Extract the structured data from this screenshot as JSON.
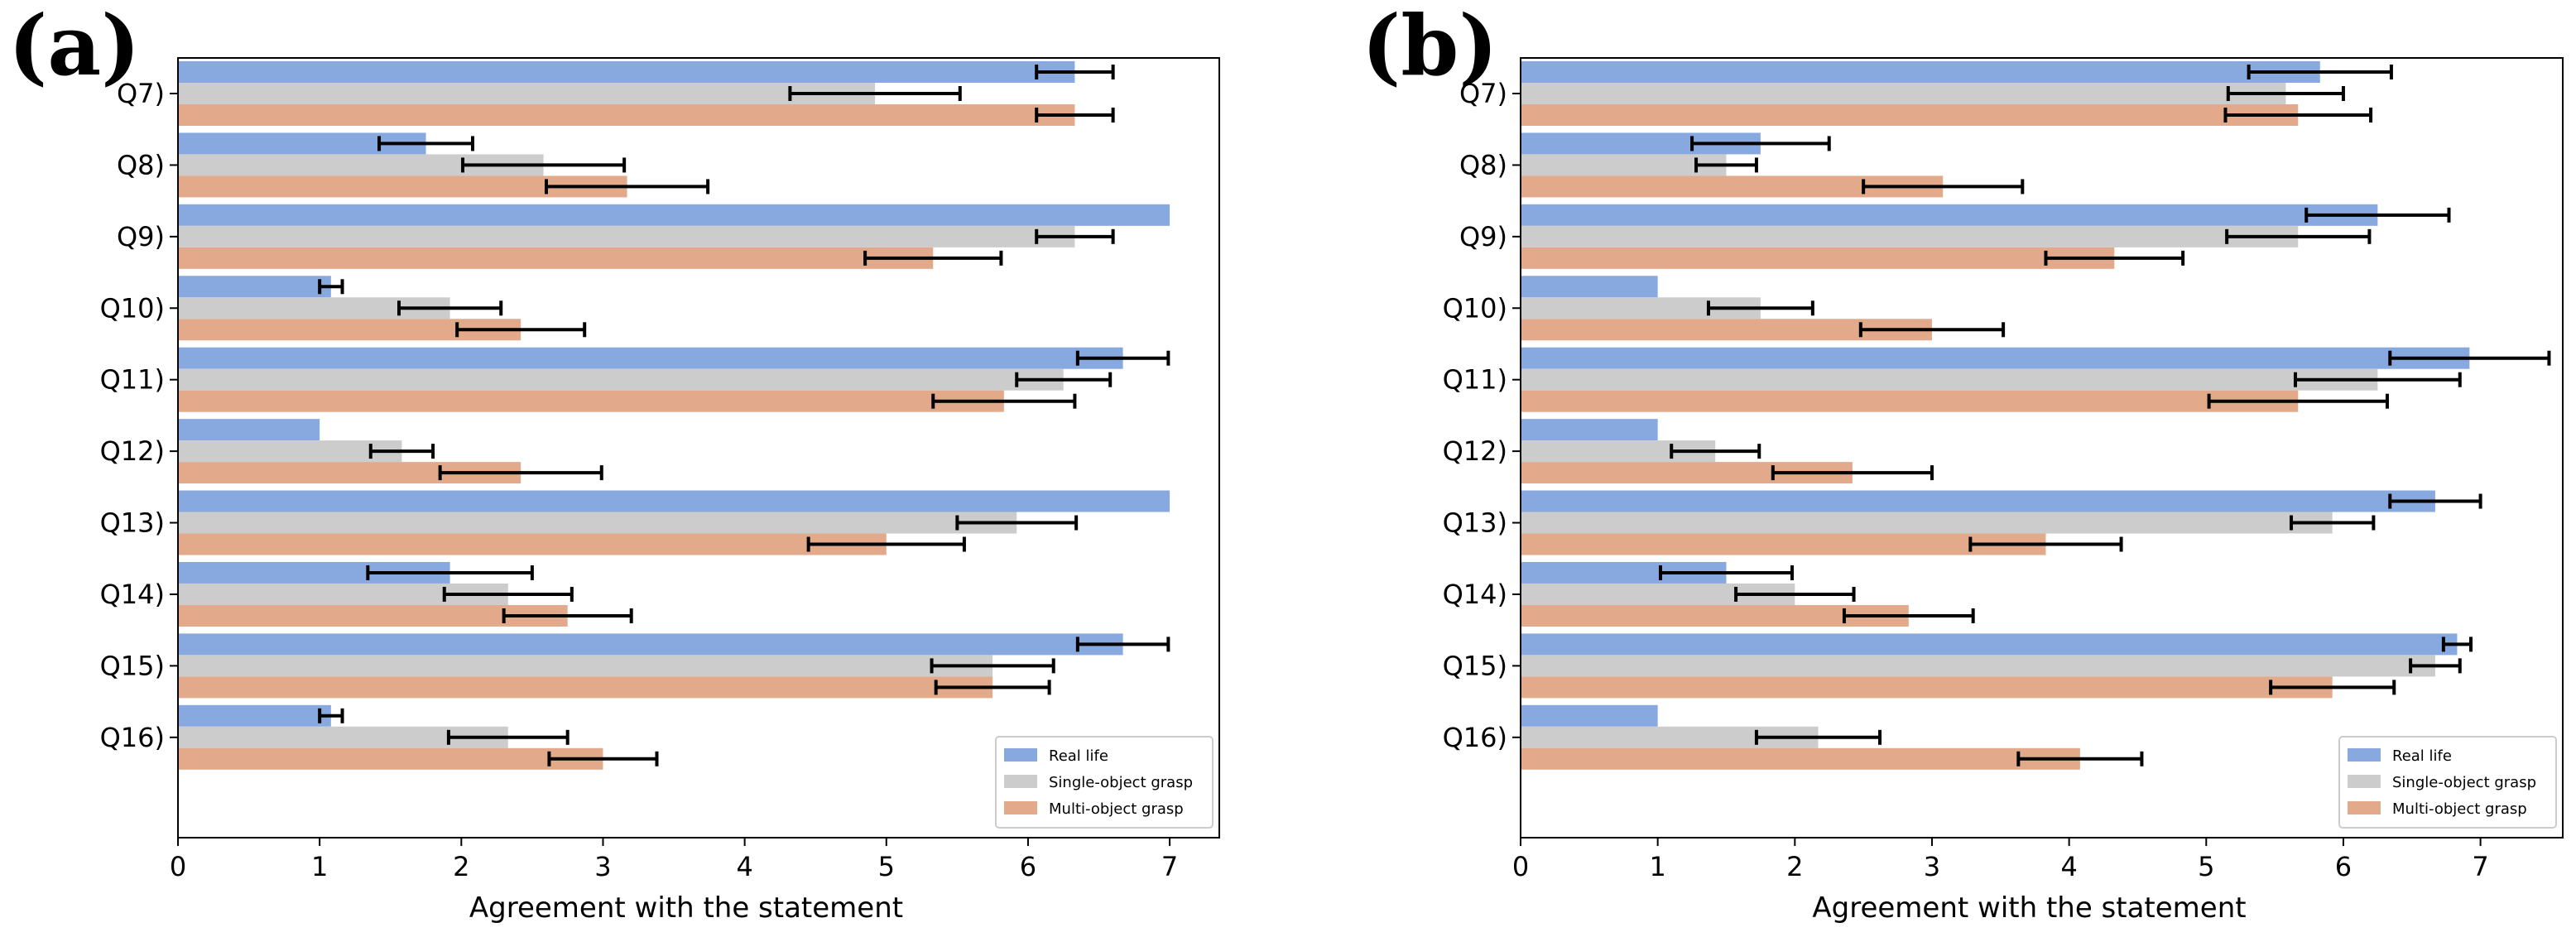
{
  "colors": {
    "real_life": "#88a9e0",
    "single_object": "#cccccc",
    "multi_object": "#e2aa8a",
    "error_bar": "#000000",
    "axis": "#000000",
    "legend_border": "#cccccc"
  },
  "chart_data": [
    {
      "type": "bar",
      "orientation": "horizontal",
      "panel_label": "(a)",
      "xlabel": "Agreement with the statement",
      "xlim": [
        0,
        7.35
      ],
      "xticks": [
        "0",
        "1",
        "2",
        "3",
        "4",
        "5",
        "6",
        "7"
      ],
      "categories": [
        "Q7)",
        "Q8)",
        "Q9)",
        "Q10)",
        "Q11)",
        "Q12)",
        "Q13)",
        "Q14)",
        "Q15)",
        "Q16)"
      ],
      "legend": {
        "placement": "bottom-right",
        "entries": [
          "Real life",
          "Single-object grasp",
          "Multi-object grasp"
        ]
      },
      "series": [
        {
          "name": "Real life",
          "values": [
            6.33,
            1.75,
            7.0,
            1.08,
            6.67,
            1.0,
            7.0,
            1.92,
            6.67,
            1.08
          ],
          "errors": [
            0.27,
            0.33,
            0.0,
            0.08,
            0.32,
            0.0,
            0.0,
            0.58,
            0.32,
            0.08
          ]
        },
        {
          "name": "Single-object grasp",
          "values": [
            4.92,
            2.58,
            6.33,
            1.92,
            6.25,
            1.58,
            5.92,
            2.33,
            5.75,
            2.33
          ],
          "errors": [
            0.6,
            0.57,
            0.27,
            0.36,
            0.33,
            0.22,
            0.42,
            0.45,
            0.43,
            0.42
          ]
        },
        {
          "name": "Multi-object grasp",
          "values": [
            6.33,
            3.17,
            5.33,
            2.42,
            5.83,
            2.42,
            5.0,
            2.75,
            5.75,
            3.0
          ],
          "errors": [
            0.27,
            0.57,
            0.48,
            0.45,
            0.5,
            0.57,
            0.55,
            0.45,
            0.4,
            0.38
          ]
        }
      ]
    },
    {
      "type": "bar",
      "orientation": "horizontal",
      "panel_label": "(b)",
      "xlabel": "Agreement with the statement",
      "xlim": [
        0,
        7.6
      ],
      "xticks": [
        "0",
        "1",
        "2",
        "3",
        "4",
        "5",
        "6",
        "7"
      ],
      "categories": [
        "Q7)",
        "Q8)",
        "Q9)",
        "Q10)",
        "Q11)",
        "Q12)",
        "Q13)",
        "Q14)",
        "Q15)",
        "Q16)"
      ],
      "legend": {
        "placement": "bottom-right",
        "entries": [
          "Real life",
          "Single-object grasp",
          "Multi-object grasp"
        ]
      },
      "series": [
        {
          "name": "Real life",
          "values": [
            5.83,
            1.75,
            6.25,
            1.0,
            6.92,
            1.0,
            6.67,
            1.5,
            6.83,
            1.0
          ],
          "errors": [
            0.52,
            0.5,
            0.52,
            0.0,
            0.58,
            0.0,
            0.33,
            0.48,
            0.1,
            0.0
          ]
        },
        {
          "name": "Single-object grasp",
          "values": [
            5.58,
            1.5,
            5.67,
            1.75,
            6.25,
            1.42,
            5.92,
            2.0,
            6.67,
            2.17
          ],
          "errors": [
            0.42,
            0.22,
            0.52,
            0.38,
            0.6,
            0.32,
            0.3,
            0.43,
            0.18,
            0.45
          ]
        },
        {
          "name": "Multi-object grasp",
          "values": [
            5.67,
            3.08,
            4.33,
            3.0,
            5.67,
            2.42,
            3.83,
            2.83,
            5.92,
            4.08
          ],
          "errors": [
            0.53,
            0.58,
            0.5,
            0.52,
            0.65,
            0.58,
            0.55,
            0.47,
            0.45,
            0.45
          ]
        }
      ]
    }
  ]
}
